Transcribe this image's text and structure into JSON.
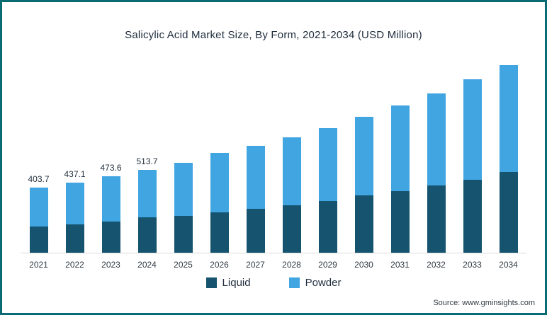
{
  "title": "Salicylic Acid Market Size, By Form, 2021-2034 (USD Million)",
  "source": "Source: www.gminsights.com",
  "colors": {
    "liquid": "#15536e",
    "powder": "#41a5e1",
    "frame": "#0b6b72",
    "axis": "#d9d9d9"
  },
  "legend": {
    "items": [
      {
        "label": "Liquid",
        "color_key": "liquid"
      },
      {
        "label": "Powder",
        "color_key": "powder"
      }
    ],
    "position": "bottom-center"
  },
  "chart_data": {
    "type": "bar",
    "stacked": true,
    "title": "Salicylic Acid Market Size, By Form, 2021-2034 (USD Million)",
    "xlabel": "",
    "ylabel": "USD Million",
    "grid": false,
    "categories": [
      "2021",
      "2022",
      "2023",
      "2024",
      "2025",
      "2026",
      "2027",
      "2028",
      "2029",
      "2030",
      "2031",
      "2032",
      "2033",
      "2034"
    ],
    "series": [
      {
        "name": "Liquid",
        "values": [
          161.0,
          178.0,
          192.0,
          218.0,
          230,
          252,
          274,
          296,
          322,
          357,
          383,
          418,
          452,
          500
        ]
      },
      {
        "name": "Powder",
        "values": [
          242.7,
          259.1,
          281.6,
          295.7,
          330,
          366,
          391,
          422,
          453,
          488,
          532,
          570,
          623,
          665
        ]
      }
    ],
    "totals": [
      403.7,
      437.1,
      473.6,
      513.7,
      560,
      618,
      665,
      718,
      775,
      845,
      915,
      988,
      1075,
      1165
    ],
    "data_labels": [
      "403.7",
      "437.1",
      "473.6",
      "513.7",
      null,
      null,
      null,
      null,
      null,
      null,
      null,
      null,
      null,
      null
    ],
    "note": "Totals for 2025-2034 are estimated from bar heights; only 2021-2024 have printed labels."
  }
}
